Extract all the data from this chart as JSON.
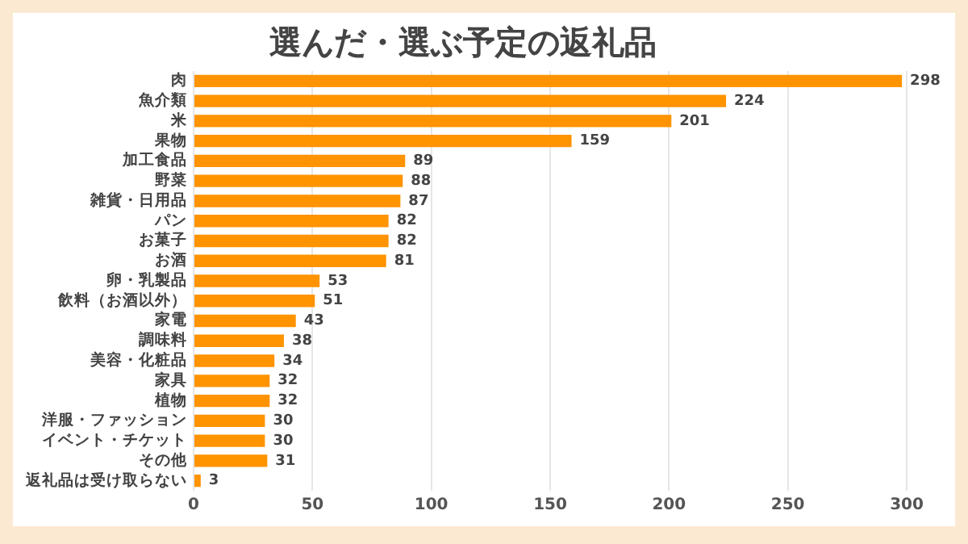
{
  "chart_data": {
    "type": "bar",
    "orientation": "horizontal",
    "title": "選んだ・選ぶ予定の返礼品",
    "categories": [
      "肉",
      "魚介類",
      "米",
      "果物",
      "加工食品",
      "野菜",
      "雑貨・日用品",
      "パン",
      "お菓子",
      "お酒",
      "卵・乳製品",
      "飲料（お酒以外）",
      "家電",
      "調味料",
      "美容・化粧品",
      "家具",
      "植物",
      "洋服・ファッション",
      "イベント・チケット",
      "その他",
      "返礼品は受け取らない"
    ],
    "values": [
      298,
      224,
      201,
      159,
      89,
      88,
      87,
      82,
      82,
      81,
      53,
      51,
      43,
      38,
      34,
      32,
      32,
      30,
      30,
      31,
      3
    ],
    "color": "#ff9300",
    "xlim": [
      0,
      300
    ],
    "xticks": [
      0,
      50,
      100,
      150,
      200,
      250,
      300
    ],
    "grid": "x",
    "data_labels": true
  }
}
